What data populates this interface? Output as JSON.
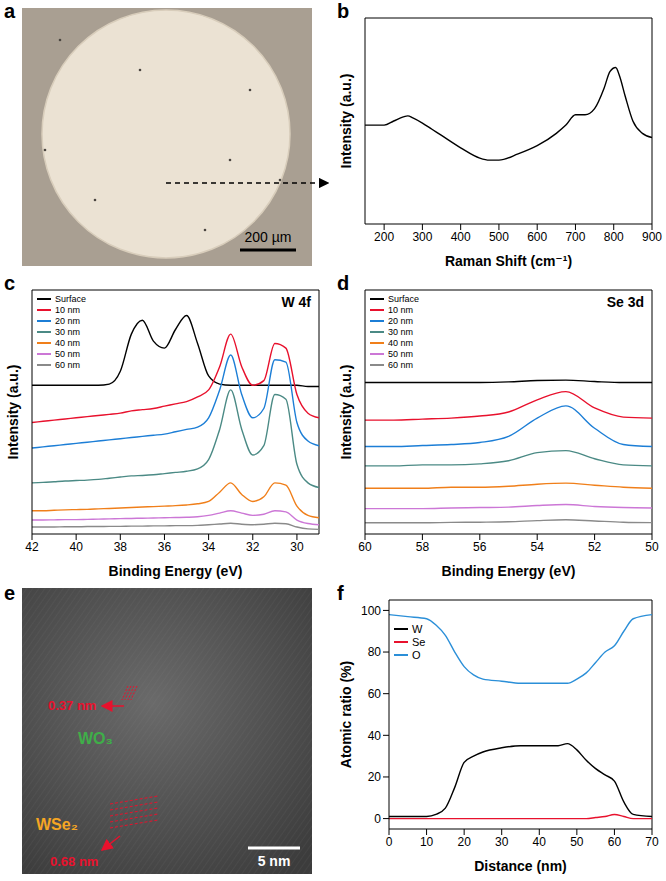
{
  "chart_data": [
    {
      "type": "image",
      "panel_label": "a",
      "scale_bar": "200 µm"
    },
    {
      "type": "line",
      "panel_label": "b",
      "xlabel": "Raman Shift (cm⁻¹)",
      "ylabel": "Intensity (a.u.)",
      "x": [
        150,
        175,
        200,
        225,
        250,
        262,
        275,
        300,
        325,
        350,
        400,
        450,
        475,
        500,
        550,
        600,
        650,
        675,
        700,
        725,
        750,
        775,
        790,
        805,
        815,
        830,
        850,
        875,
        900
      ],
      "values": [
        0.48,
        0.48,
        0.48,
        0.5,
        0.52,
        0.525,
        0.515,
        0.49,
        0.46,
        0.43,
        0.37,
        0.32,
        0.31,
        0.31,
        0.34,
        0.38,
        0.44,
        0.48,
        0.53,
        0.53,
        0.56,
        0.66,
        0.74,
        0.76,
        0.72,
        0.62,
        0.5,
        0.44,
        0.42
      ],
      "color": "#000000",
      "xlim": [
        150,
        900
      ],
      "xticks": [
        200,
        300,
        400,
        500,
        600,
        700,
        800,
        900
      ],
      "ylim": [
        0,
        1
      ],
      "tick_labels": "x"
    },
    {
      "type": "line",
      "panel_label": "c",
      "title": "W 4f",
      "xlabel": "Binding Energy (eV)",
      "ylabel": "Intensity (a.u.)",
      "x": [
        42,
        41.5,
        41,
        40.5,
        40,
        39.5,
        39,
        38.5,
        38,
        37.5,
        37,
        36.5,
        36,
        35.5,
        35,
        34.5,
        34,
        33.5,
        33,
        32.5,
        32,
        31.5,
        31,
        30.5,
        30,
        29.5,
        29
      ],
      "series": [
        {
          "name": "Surface",
          "color": "#000000",
          "values": [
            0.64,
            0.64,
            0.64,
            0.64,
            0.64,
            0.64,
            0.64,
            0.645,
            0.7,
            0.86,
            0.92,
            0.83,
            0.8,
            0.88,
            0.94,
            0.82,
            0.68,
            0.645,
            0.64,
            0.64,
            0.64,
            0.64,
            0.64,
            0.64,
            0.64,
            0.635,
            0.635
          ]
        },
        {
          "name": "10 nm",
          "color": "#e8112d",
          "values": [
            0.48,
            0.485,
            0.49,
            0.495,
            0.5,
            0.505,
            0.51,
            0.515,
            0.52,
            0.53,
            0.535,
            0.54,
            0.55,
            0.56,
            0.57,
            0.59,
            0.62,
            0.72,
            0.86,
            0.72,
            0.64,
            0.66,
            0.82,
            0.8,
            0.6,
            0.52,
            0.5
          ]
        },
        {
          "name": "20 nm",
          "color": "#1c7ed6",
          "values": [
            0.37,
            0.375,
            0.38,
            0.385,
            0.39,
            0.395,
            0.4,
            0.405,
            0.41,
            0.415,
            0.42,
            0.425,
            0.43,
            0.44,
            0.45,
            0.46,
            0.5,
            0.62,
            0.77,
            0.6,
            0.5,
            0.54,
            0.75,
            0.74,
            0.48,
            0.4,
            0.38
          ]
        },
        {
          "name": "30 nm",
          "color": "#4b8a85",
          "values": [
            0.22,
            0.222,
            0.225,
            0.228,
            0.23,
            0.232,
            0.235,
            0.24,
            0.245,
            0.25,
            0.252,
            0.255,
            0.26,
            0.265,
            0.27,
            0.28,
            0.32,
            0.45,
            0.62,
            0.45,
            0.34,
            0.38,
            0.6,
            0.58,
            0.3,
            0.22,
            0.2
          ]
        },
        {
          "name": "40 nm",
          "color": "#f07f1a",
          "values": [
            0.1,
            0.1,
            0.102,
            0.104,
            0.105,
            0.106,
            0.108,
            0.11,
            0.112,
            0.114,
            0.116,
            0.118,
            0.12,
            0.122,
            0.125,
            0.13,
            0.14,
            0.18,
            0.22,
            0.17,
            0.14,
            0.16,
            0.22,
            0.21,
            0.12,
            0.08,
            0.07
          ]
        },
        {
          "name": "50 nm",
          "color": "#cc77d6",
          "values": [
            0.06,
            0.06,
            0.061,
            0.062,
            0.062,
            0.063,
            0.064,
            0.065,
            0.066,
            0.067,
            0.068,
            0.069,
            0.07,
            0.071,
            0.072,
            0.074,
            0.08,
            0.09,
            0.1,
            0.09,
            0.08,
            0.085,
            0.1,
            0.095,
            0.06,
            0.045,
            0.04
          ]
        },
        {
          "name": "60 nm",
          "color": "#8a8a8a",
          "values": [
            0.03,
            0.03,
            0.03,
            0.031,
            0.031,
            0.032,
            0.032,
            0.033,
            0.033,
            0.034,
            0.034,
            0.035,
            0.035,
            0.036,
            0.036,
            0.037,
            0.04,
            0.043,
            0.046,
            0.042,
            0.04,
            0.042,
            0.046,
            0.044,
            0.03,
            0.022,
            0.02
          ]
        }
      ],
      "xlim": [
        42,
        29
      ],
      "xticks": [
        42,
        40,
        38,
        36,
        34,
        32,
        30
      ],
      "ylim": [
        0,
        1.05
      ],
      "tick_labels": "x",
      "legend": "upper left"
    },
    {
      "type": "line",
      "panel_label": "d",
      "title": "Se 3d",
      "xlabel": "Binding Energy (eV)",
      "ylabel": "Intensity (a.u.)",
      "x": [
        60,
        59,
        58,
        57,
        56,
        55,
        54,
        53,
        52,
        51,
        50
      ],
      "series": [
        {
          "name": "Surface",
          "color": "#000000",
          "values": [
            0.745,
            0.745,
            0.745,
            0.745,
            0.745,
            0.748,
            0.755,
            0.757,
            0.75,
            0.745,
            0.745
          ]
        },
        {
          "name": "10 nm",
          "color": "#e8112d",
          "values": [
            0.56,
            0.56,
            0.565,
            0.57,
            0.58,
            0.6,
            0.66,
            0.7,
            0.62,
            0.575,
            0.57
          ]
        },
        {
          "name": "20 nm",
          "color": "#1c7ed6",
          "values": [
            0.43,
            0.43,
            0.435,
            0.44,
            0.45,
            0.48,
            0.57,
            0.63,
            0.52,
            0.44,
            0.43
          ]
        },
        {
          "name": "30 nm",
          "color": "#4b8a85",
          "values": [
            0.335,
            0.335,
            0.34,
            0.34,
            0.345,
            0.36,
            0.4,
            0.41,
            0.37,
            0.34,
            0.335
          ]
        },
        {
          "name": "40 nm",
          "color": "#f07f1a",
          "values": [
            0.225,
            0.225,
            0.225,
            0.23,
            0.23,
            0.235,
            0.245,
            0.25,
            0.24,
            0.23,
            0.225
          ]
        },
        {
          "name": "50 nm",
          "color": "#cc77d6",
          "values": [
            0.125,
            0.125,
            0.125,
            0.128,
            0.13,
            0.132,
            0.14,
            0.145,
            0.135,
            0.13,
            0.128
          ]
        },
        {
          "name": "60 nm",
          "color": "#8a8a8a",
          "values": [
            0.055,
            0.055,
            0.055,
            0.057,
            0.058,
            0.06,
            0.066,
            0.07,
            0.064,
            0.058,
            0.056
          ]
        }
      ],
      "xlim": [
        60,
        50
      ],
      "xticks": [
        60,
        58,
        56,
        54,
        52,
        50
      ],
      "ylim": [
        0,
        1.2
      ],
      "tick_labels": "x",
      "legend": "upper left"
    },
    {
      "type": "image",
      "panel_label": "e",
      "scale_bar": "5 nm",
      "annotations": [
        {
          "text": "0.37 nm",
          "color": "#e8112d"
        },
        {
          "text": "WO₃",
          "color": "#3fae49"
        },
        {
          "text": "WSe₂",
          "color": "#f5a623"
        },
        {
          "text": "0.68 nm",
          "color": "#e8112d"
        }
      ]
    },
    {
      "type": "line",
      "panel_label": "f",
      "xlabel": "Distance (nm)",
      "ylabel": "Atomic ratio (%)",
      "x": [
        0,
        5,
        10,
        12.5,
        15,
        17.5,
        20,
        22.5,
        25,
        30,
        35,
        40,
        45,
        47.5,
        50,
        52.5,
        55,
        57.5,
        60,
        62.5,
        65,
        70
      ],
      "series": [
        {
          "name": "W",
          "color": "#000000",
          "values": [
            1,
            1,
            1,
            2,
            5,
            15,
            27,
            30,
            32,
            34,
            35,
            35,
            35,
            36,
            33,
            28,
            24,
            21,
            18,
            8,
            2,
            1
          ]
        },
        {
          "name": "Se",
          "color": "#e8112d",
          "values": [
            0,
            0,
            0,
            0,
            0,
            0,
            0,
            0,
            0,
            0,
            0,
            0,
            0,
            0,
            0,
            0,
            0.5,
            1,
            2,
            1,
            0,
            0
          ]
        },
        {
          "name": "O",
          "color": "#2b8fd8",
          "values": [
            98,
            97,
            96,
            93,
            88,
            80,
            73,
            69,
            67,
            66,
            65,
            65,
            65,
            65,
            67,
            70,
            75,
            80,
            83,
            90,
            96,
            98
          ]
        }
      ],
      "xlim": [
        0,
        70
      ],
      "xticks": [
        0,
        10,
        20,
        30,
        40,
        50,
        60,
        70
      ],
      "ylim": [
        -5,
        105
      ],
      "yticks": [
        0,
        20,
        40,
        60,
        80,
        100
      ],
      "legend": "upper left"
    }
  ]
}
